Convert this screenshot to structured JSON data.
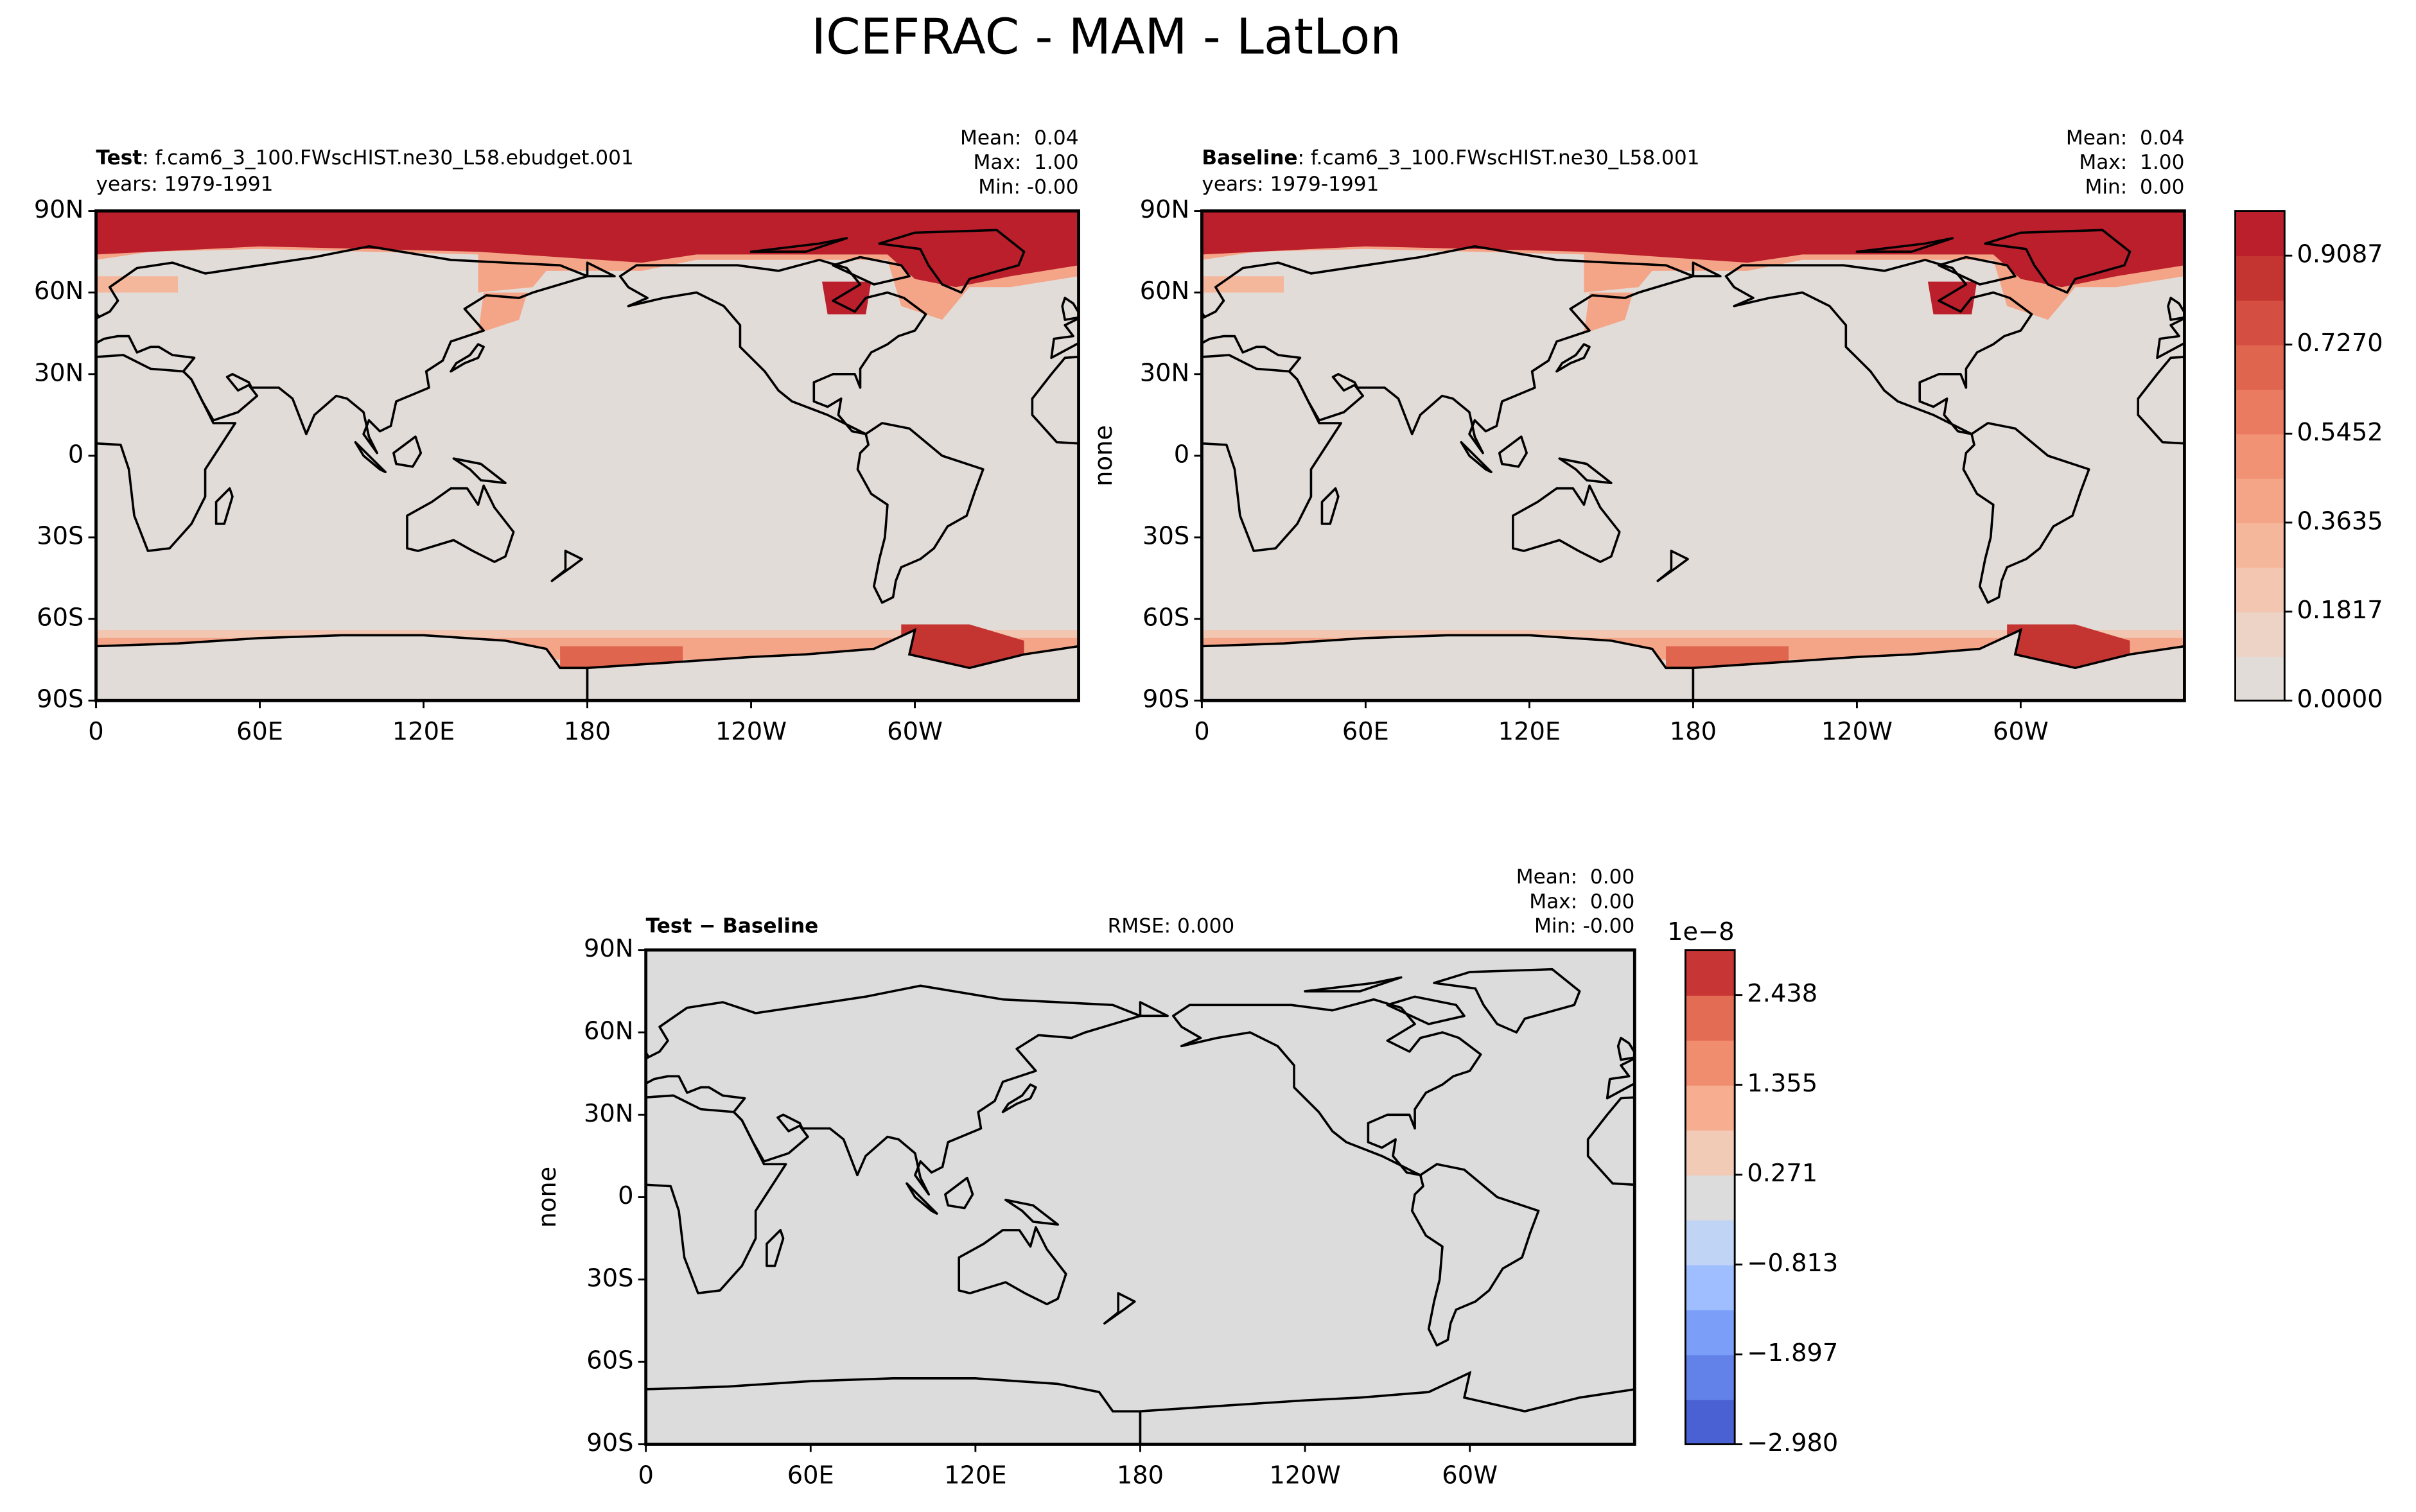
{
  "title": "ICEFRAC - MAM - LatLon",
  "panels": [
    {
      "label": "Test",
      "case": ": f.cam6_3_100.FWscHIST.ne30_L58.ebudget.001",
      "years": "years: 1979-1991",
      "stats": [
        "Mean:  0.04",
        "Max:  1.00",
        "Min: -0.00"
      ]
    },
    {
      "label": "Baseline",
      "case": ": f.cam6_3_100.FWscHIST.ne30_L58.001",
      "years": "years: 1979-1991",
      "stats": [
        "Mean:  0.04",
        "Max:  1.00",
        "Min:  0.00"
      ],
      "ylabel": "none"
    },
    {
      "label": "Test − Baseline",
      "rmse": "RMSE: 0.000",
      "stats": [
        "Mean:  0.00",
        "Max:  0.00",
        "Min: -0.00"
      ],
      "ylabel": "none"
    }
  ],
  "map": {
    "xlim": [
      0,
      360
    ],
    "ylim": [
      -90,
      90
    ],
    "xticks": [
      0,
      {
        "value": 60,
        "label": "60E"
      },
      {
        "value": 120,
        "label": "120E"
      },
      180,
      {
        "value": 240,
        "label": "120W"
      },
      {
        "value": 300,
        "label": "60W"
      }
    ],
    "yticks": [
      {
        "value": -90,
        "label": "90S"
      },
      {
        "value": -60,
        "label": "60S"
      },
      {
        "value": -30,
        "label": "30S"
      },
      0,
      {
        "value": 30,
        "label": "30N"
      },
      {
        "value": 60,
        "label": "60N"
      },
      {
        "value": 90,
        "label": "90N"
      }
    ]
  },
  "colorbars": [
    {
      "clim": [
        0,
        1
      ],
      "ticks": [
        {
          "value": 0,
          "label": "0.0000"
        },
        0.1817,
        0.3635,
        0.5452,
        {
          "value": 0.727,
          "label": "0.7270"
        },
        0.9087
      ],
      "colors": [
        "#e2dcd9",
        "#ecd3c5",
        "#f2c6b0",
        "#f5b79b",
        "#f4a588",
        "#f29274",
        "#ea7b60",
        "#e0654f",
        "#d44e41",
        "#c43532",
        "#bb1f2b"
      ]
    },
    {
      "clim": [
        -2.98,
        2.98
      ],
      "offset": "1e−8",
      "ticks": [
        {
          "value": -2.98,
          "label": "−2.980"
        },
        {
          "value": -1.897,
          "label": "−1.897"
        },
        {
          "value": -0.813,
          "label": "−0.813"
        },
        0.271,
        1.355,
        2.438
      ],
      "colors": [
        "#4961d2",
        "#6282ea",
        "#7b9ff9",
        "#9ebeff",
        "#c0d4f5",
        "#dcdcdc",
        "#f2cbb7",
        "#f7ad90",
        "#f18d6f",
        "#e36c55",
        "#c73635"
      ]
    }
  ]
}
